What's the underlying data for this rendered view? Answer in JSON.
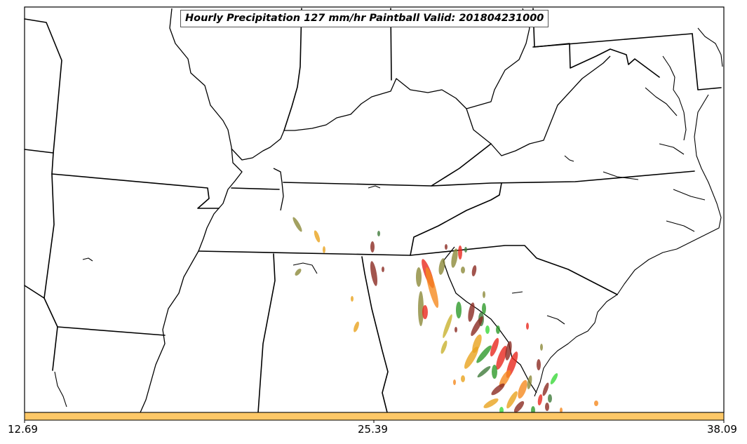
{
  "title": "Hourly Precipitation 127 mm/hr Paintball Valid: 201804231000",
  "colorbar": {
    "ticks": [
      "12.69",
      "25.39",
      "38.09"
    ],
    "color": "#fec867"
  },
  "paintball_colors": {
    "olive": "#8c8a3a",
    "gold": "#e8a21e",
    "orange": "#f58a1f",
    "red": "#e8281e",
    "dark_red": "#8b2a22",
    "green": "#2e9a2a",
    "lime": "#3ad83a",
    "dark_green": "#3f7a3a",
    "yellow_olive": "#c8b22e"
  }
}
